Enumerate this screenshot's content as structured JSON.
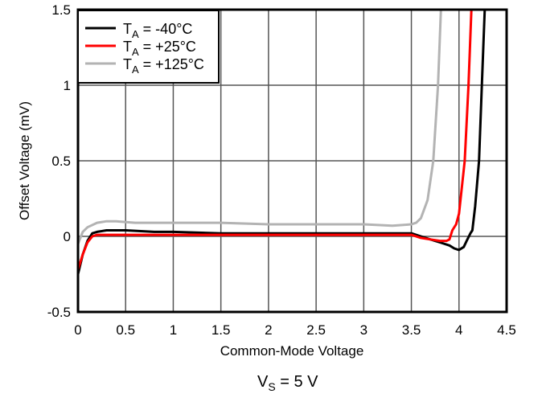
{
  "chart_data": {
    "type": "line",
    "title": "",
    "xlabel": "Common-Mode Voltage",
    "ylabel": "Offset Voltage (mV)",
    "caption": {
      "main": "V",
      "sub": "S",
      "rest": " = 5 V"
    },
    "xlim": [
      0,
      4.5
    ],
    "ylim": [
      -0.5,
      1.5
    ],
    "xticks": [
      "0",
      "0.5",
      "1",
      "1.5",
      "2",
      "2.5",
      "3",
      "3.5",
      "4",
      "4.5"
    ],
    "yticks": [
      "-0.5",
      "0",
      "0.5",
      "1",
      "1.5"
    ],
    "grid": true,
    "legend_position": "top-left",
    "series": [
      {
        "name": {
          "main": "T",
          "sub": "A",
          "rest": " = -40°C"
        },
        "color": "#000000",
        "x": [
          0,
          0.05,
          0.1,
          0.15,
          0.2,
          0.3,
          0.4,
          0.5,
          0.8,
          1.0,
          1.5,
          2.0,
          2.5,
          3.0,
          3.5,
          3.6,
          3.7,
          3.8,
          3.9,
          3.95,
          4.0,
          4.05,
          4.08,
          4.12,
          4.14,
          4.17,
          4.19,
          4.21,
          4.24,
          4.27
        ],
        "y": [
          -0.25,
          -0.12,
          -0.03,
          0.02,
          0.03,
          0.04,
          0.04,
          0.04,
          0.03,
          0.03,
          0.02,
          0.02,
          0.02,
          0.02,
          0.02,
          0.0,
          -0.02,
          -0.04,
          -0.06,
          -0.08,
          -0.09,
          -0.07,
          -0.03,
          0.02,
          0.04,
          0.2,
          0.35,
          0.5,
          1.0,
          1.5
        ]
      },
      {
        "name": {
          "main": "T",
          "sub": "A",
          "rest": " = +25°C"
        },
        "color": "#ff0000",
        "x": [
          0,
          0.05,
          0.1,
          0.15,
          0.2,
          0.3,
          0.5,
          1.0,
          1.5,
          2.0,
          2.5,
          3.0,
          3.5,
          3.6,
          3.7,
          3.8,
          3.87,
          3.9,
          3.93,
          3.97,
          4.0,
          4.06,
          4.1,
          4.13
        ],
        "y": [
          -0.22,
          -0.12,
          -0.04,
          0.0,
          0.01,
          0.01,
          0.01,
          0.01,
          0.01,
          0.01,
          0.01,
          0.01,
          0.01,
          -0.01,
          -0.02,
          -0.03,
          -0.03,
          -0.02,
          0.04,
          0.08,
          0.15,
          0.5,
          1.0,
          1.5
        ]
      },
      {
        "name": {
          "main": "T",
          "sub": "A",
          "rest": " = +125°C"
        },
        "color": "#b3b3b3",
        "x": [
          0,
          0.05,
          0.1,
          0.2,
          0.3,
          0.4,
          0.6,
          1.0,
          1.5,
          2.0,
          2.5,
          3.0,
          3.3,
          3.5,
          3.55,
          3.6,
          3.67,
          3.73,
          3.78,
          3.81
        ],
        "y": [
          -0.05,
          0.03,
          0.06,
          0.09,
          0.1,
          0.1,
          0.09,
          0.09,
          0.09,
          0.08,
          0.08,
          0.08,
          0.07,
          0.08,
          0.09,
          0.12,
          0.24,
          0.5,
          1.0,
          1.5
        ]
      }
    ]
  }
}
